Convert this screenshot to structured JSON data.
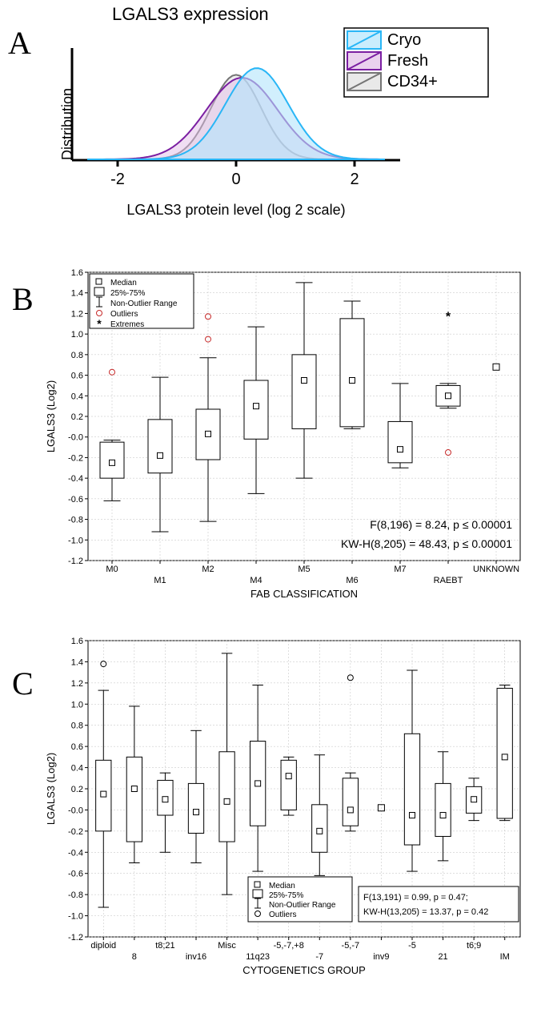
{
  "panelA": {
    "label": "A",
    "title": "LGALS3 expression",
    "ylabel": "Distribution",
    "xlabel": "LGALS3 protein level (log 2 scale)",
    "xlim": [
      -2.5,
      2.5
    ],
    "xticks": [
      -2,
      0,
      2
    ],
    "legend": [
      {
        "label": "Cryo",
        "fill": "#b3e5fc",
        "stroke": "#29b6f6"
      },
      {
        "label": "Fresh",
        "fill": "#e1bee7",
        "stroke": "#7b1fa2"
      },
      {
        "label": "CD34+",
        "fill": "#e0e0e0",
        "stroke": "#757575"
      }
    ],
    "title_fontsize": 22,
    "label_fontsize": 18,
    "tick_fontsize": 20,
    "background_color": "#ffffff",
    "axis_color": "#000000",
    "axis_width": 3,
    "curves": {
      "cryo": {
        "center": 0.35,
        "width": 0.75,
        "height": 0.95,
        "fill": "#b3e5fc",
        "stroke": "#29b6f6",
        "opacity": 0.6
      },
      "fresh": {
        "center": 0.1,
        "width": 0.85,
        "height": 0.85,
        "fill": "#e1bee7",
        "stroke": "#7b1fa2",
        "opacity": 0.5
      },
      "cd34": {
        "center": 0.0,
        "width": 0.6,
        "height": 0.88,
        "fill": "#e0e0e0",
        "stroke": "#757575",
        "opacity": 0.5
      }
    }
  },
  "panelB": {
    "label": "B",
    "ylabel": "LGALS3 (Log2)",
    "xlabel": "FAB CLASSIFICATION",
    "ylim": [
      -1.2,
      1.6
    ],
    "ytick_step": 0.2,
    "categories": [
      "M0",
      "M1",
      "M2",
      "M4",
      "M5",
      "M6",
      "M7",
      "RAEBT",
      "UNKNOWN"
    ],
    "legend_items": [
      {
        "symbol": "square-open",
        "label": "Median"
      },
      {
        "symbol": "box",
        "label": "25%-75%"
      },
      {
        "symbol": "whisker",
        "label": "Non-Outlier Range"
      },
      {
        "symbol": "circle-open",
        "label": "Outliers",
        "color": "#c62828"
      },
      {
        "symbol": "asterisk",
        "label": "Extremes"
      }
    ],
    "boxes": [
      {
        "cat": "M0",
        "median": -0.25,
        "q1": -0.4,
        "q3": -0.05,
        "lo": -0.62,
        "hi": -0.03,
        "outliers": [
          0.63
        ]
      },
      {
        "cat": "M1",
        "median": -0.18,
        "q1": -0.35,
        "q3": 0.17,
        "lo": -0.92,
        "hi": 0.58
      },
      {
        "cat": "M2",
        "median": 0.03,
        "q1": -0.22,
        "q3": 0.27,
        "lo": -0.82,
        "hi": 0.77,
        "outliers": [
          0.95,
          1.17
        ]
      },
      {
        "cat": "M4",
        "median": 0.3,
        "q1": -0.02,
        "q3": 0.55,
        "lo": -0.55,
        "hi": 1.07
      },
      {
        "cat": "M5",
        "median": 0.55,
        "q1": 0.08,
        "q3": 0.8,
        "lo": -0.4,
        "hi": 1.5
      },
      {
        "cat": "M6",
        "median": 0.55,
        "q1": 0.1,
        "q3": 1.15,
        "lo": 0.08,
        "hi": 1.32
      },
      {
        "cat": "M7",
        "median": -0.12,
        "q1": -0.25,
        "q3": 0.15,
        "lo": -0.3,
        "hi": 0.52
      },
      {
        "cat": "RAEBT",
        "median": 0.4,
        "q1": 0.3,
        "q3": 0.5,
        "lo": 0.28,
        "hi": 0.52,
        "outliers": [
          -0.15
        ],
        "extremes": [
          1.17
        ]
      },
      {
        "cat": "UNKNOWN",
        "median": 0.68,
        "q1": 0.68,
        "q3": 0.68,
        "lo": 0.68,
        "hi": 0.68,
        "median_only": true
      }
    ],
    "stats": [
      "F(8,196) = 8.24,   p ≤ 0.00001",
      "KW-H(8,205) = 48.43, p ≤ 0.00001"
    ],
    "grid_color": "#bfbfbf",
    "box_fill": "#ffffff",
    "box_stroke": "#000000",
    "outlier_color": "#c62828",
    "label_fontsize": 13,
    "tick_fontsize": 11,
    "stats_fontsize": 14
  },
  "panelC": {
    "label": "C",
    "ylabel": "LGALS3 (Log2)",
    "xlabel": "CYTOGENETICS GROUP",
    "ylim": [
      -1.2,
      1.6
    ],
    "ytick_step": 0.2,
    "categories": [
      "diploid",
      "8",
      "t8;21",
      "inv16",
      "Misc",
      "11q23",
      "-5,-7,+8",
      "-7",
      "-5,-7",
      "inv9",
      "-5",
      "21",
      "t6;9",
      "IM"
    ],
    "legend_items": [
      {
        "symbol": "square-open",
        "label": "Median"
      },
      {
        "symbol": "box",
        "label": "25%-75%"
      },
      {
        "symbol": "whisker",
        "label": "Non-Outlier Range"
      },
      {
        "symbol": "circle-open",
        "label": "Outliers",
        "color": "#000000"
      }
    ],
    "boxes": [
      {
        "cat": "diploid",
        "median": 0.15,
        "q1": -0.2,
        "q3": 0.47,
        "lo": -0.92,
        "hi": 1.13,
        "outliers": [
          1.38
        ]
      },
      {
        "cat": "8",
        "median": 0.2,
        "q1": -0.3,
        "q3": 0.5,
        "lo": -0.5,
        "hi": 0.98
      },
      {
        "cat": "t8;21",
        "median": 0.1,
        "q1": -0.05,
        "q3": 0.28,
        "lo": -0.4,
        "hi": 0.35
      },
      {
        "cat": "inv16",
        "median": -0.02,
        "q1": -0.22,
        "q3": 0.25,
        "lo": -0.5,
        "hi": 0.75
      },
      {
        "cat": "Misc",
        "median": 0.08,
        "q1": -0.3,
        "q3": 0.55,
        "lo": -0.8,
        "hi": 1.48
      },
      {
        "cat": "11q23",
        "median": 0.25,
        "q1": -0.15,
        "q3": 0.65,
        "lo": -0.58,
        "hi": 1.18
      },
      {
        "cat": "-5,-7,+8",
        "median": 0.32,
        "q1": 0.0,
        "q3": 0.47,
        "lo": -0.05,
        "hi": 0.5
      },
      {
        "cat": "-7",
        "median": -0.2,
        "q1": -0.4,
        "q3": 0.05,
        "lo": -0.62,
        "hi": 0.52
      },
      {
        "cat": "-5,-7",
        "median": 0.0,
        "q1": -0.15,
        "q3": 0.3,
        "lo": -0.2,
        "hi": 0.35,
        "outliers": [
          1.25
        ]
      },
      {
        "cat": "inv9",
        "median": 0.02,
        "q1": 0.02,
        "q3": 0.02,
        "lo": 0.02,
        "hi": 0.02,
        "median_only": true
      },
      {
        "cat": "-5",
        "median": -0.05,
        "q1": -0.33,
        "q3": 0.72,
        "lo": -0.58,
        "hi": 1.32
      },
      {
        "cat": "21",
        "median": -0.05,
        "q1": -0.25,
        "q3": 0.25,
        "lo": -0.48,
        "hi": 0.55
      },
      {
        "cat": "t6;9",
        "median": 0.1,
        "q1": -0.03,
        "q3": 0.22,
        "lo": -0.1,
        "hi": 0.3
      },
      {
        "cat": "IM",
        "median": 0.5,
        "q1": -0.08,
        "q3": 1.15,
        "lo": -0.1,
        "hi": 1.18
      }
    ],
    "stats": [
      "F(13,191) = 0.99, p = 0.47;",
      "KW-H(13,205) = 13.37, p = 0.42"
    ],
    "grid_color": "#bfbfbf",
    "box_fill": "#ffffff",
    "box_stroke": "#000000",
    "outlier_color": "#000000",
    "label_fontsize": 13,
    "tick_fontsize": 11,
    "stats_fontsize": 13
  }
}
